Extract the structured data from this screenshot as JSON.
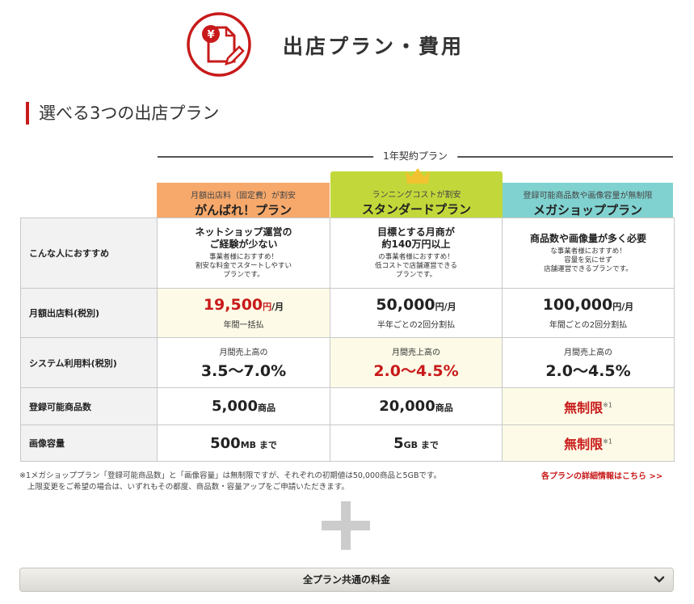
{
  "header": {
    "title": "出店プラン・費用",
    "icon": "yen-document-pencil-icon"
  },
  "section": {
    "heading": "選べる3つの出店プラン",
    "contract_label": "1年契約プラン"
  },
  "plans": [
    {
      "tagline": "月額出店料（固定費）が割安",
      "name": "がんばれ！プラン",
      "color": "#f7a96b"
    },
    {
      "tagline": "ランニングコストが割安",
      "name": "スタンダードプラン",
      "color": "#c2d83a"
    },
    {
      "tagline": "登録可能商品数や画像容量が無制限",
      "name": "メガショッププラン",
      "color": "#80d2d0"
    }
  ],
  "rows": {
    "recommend": {
      "label": "こんな人におすすめ",
      "cells": [
        {
          "main1": "ネットショップ運営の",
          "main2": "ご経験が少ない",
          "sub1": "事業者様におすすめ！",
          "sub2": "割安な料金でスタートしやすい",
          "sub3": "プランです。"
        },
        {
          "main1": "目標とする月商が",
          "main2": "約140万円以上",
          "sub1": "の事業者様におすすめ！",
          "sub2": "低コストで店舗運営できる",
          "sub3": "プランです。"
        },
        {
          "main1": "商品数や画像量が多く必要",
          "main2": "",
          "sub1": "な事業者様におすすめ！",
          "sub2": "容量を気にせず",
          "sub3": "店舗運営できるプランです。"
        }
      ]
    },
    "monthly_fee": {
      "label": "月額出店料(税別)",
      "cells": [
        {
          "amount": "19,500",
          "unit": "円",
          "per": "/月",
          "note": "年間一括払"
        },
        {
          "amount": "50,000",
          "unit": "円",
          "per": "/月",
          "note": "半年ごとの2回分割払"
        },
        {
          "amount": "100,000",
          "unit": "円",
          "per": "/月",
          "note": "年間ごとの2回分割払"
        }
      ]
    },
    "system_fee": {
      "label": "システム利用料(税別)",
      "cells": [
        {
          "caption": "月間売上高の",
          "rate": "3.5〜7.0%"
        },
        {
          "caption": "月間売上高の",
          "rate": "2.0〜4.5%"
        },
        {
          "caption": "月間売上高の",
          "rate": "2.0〜4.5%"
        }
      ]
    },
    "products": {
      "label": "登録可能商品数",
      "cells": [
        {
          "value": "5,000",
          "unit": "商品"
        },
        {
          "value": "20,000",
          "unit": "商品"
        },
        {
          "value": "無制限",
          "mark": "※1"
        }
      ]
    },
    "images": {
      "label": "画像容量",
      "cells": [
        {
          "value": "500",
          "unit": "MB まで"
        },
        {
          "value": "5",
          "unit": "GB まで"
        },
        {
          "value": "無制限",
          "mark": "※1"
        }
      ]
    }
  },
  "footnote": {
    "line1": "※1メガショッププラン「登録可能商品数」と「画像容量」は無制限ですが、それぞれの初期値は50,000商品と5GBです。",
    "line2": "上限変更をご希望の場合は、いずれもその都度、商品数・容量アップをご申請いただきます。"
  },
  "detail_link": "各プランの詳細情報はこちら >>",
  "common_fee_button": "全プラン共通の料金",
  "colors": {
    "accent_red": "#c81a1a",
    "highlight_bg": "#fdfbe7"
  }
}
